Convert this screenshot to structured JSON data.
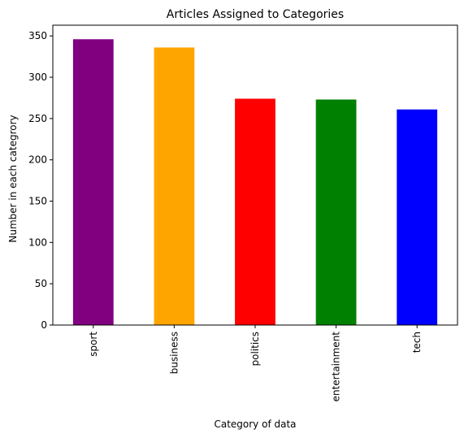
{
  "chart_data": {
    "type": "bar",
    "title": "Articles Assigned to Categories",
    "xlabel": "Category of data",
    "ylabel": "Number in each categrory",
    "categories": [
      "sport",
      "business",
      "politics",
      "entertainment",
      "tech"
    ],
    "values": [
      346,
      336,
      274,
      273,
      261
    ],
    "colors": [
      "#800080",
      "#FFA500",
      "#FF0000",
      "#008000",
      "#0000FF"
    ],
    "ylim": [
      0,
      363
    ],
    "yticks": [
      0,
      50,
      100,
      150,
      200,
      250,
      300,
      350
    ],
    "grid": false,
    "legend": "none"
  }
}
